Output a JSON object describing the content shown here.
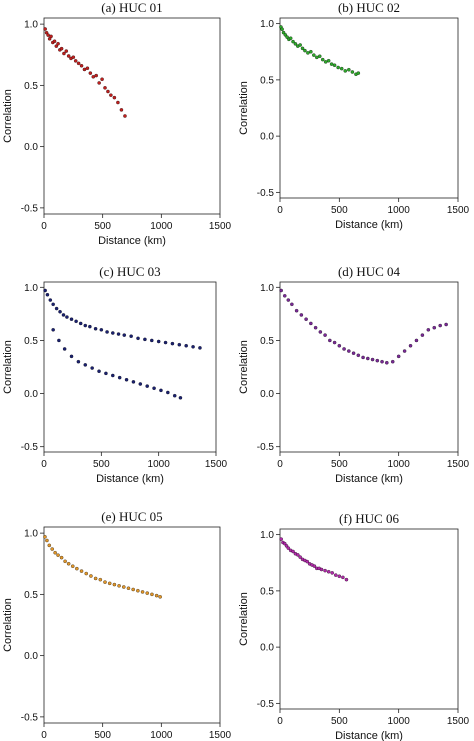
{
  "chart_data": [
    {
      "type": "scatter",
      "title": "(a) HUC 01",
      "xlabel": "Distance (km)",
      "ylabel": "Correlation",
      "xlim": [
        0,
        1500
      ],
      "ylim": [
        -0.55,
        1.05
      ],
      "xticks": [
        0,
        500,
        1000,
        1500
      ],
      "yticks": [
        -0.5,
        0.0,
        0.5,
        1.0
      ],
      "color": "#c0201f",
      "series": [
        {
          "x": [
            10,
            22,
            35,
            48,
            60,
            75,
            90,
            105,
            120,
            135,
            150,
            170,
            190,
            210,
            230,
            250,
            270,
            295,
            320,
            345,
            370,
            395,
            420,
            445,
            470,
            495,
            520,
            545,
            570,
            600,
            630,
            660,
            690
          ],
          "y": [
            0.96,
            0.93,
            0.91,
            0.88,
            0.9,
            0.85,
            0.86,
            0.82,
            0.84,
            0.79,
            0.8,
            0.76,
            0.78,
            0.74,
            0.72,
            0.73,
            0.7,
            0.68,
            0.66,
            0.63,
            0.64,
            0.6,
            0.57,
            0.58,
            0.52,
            0.55,
            0.48,
            0.45,
            0.42,
            0.4,
            0.36,
            0.3,
            0.25
          ]
        }
      ]
    },
    {
      "type": "scatter",
      "title": "(b) HUC 02",
      "xlabel": "Distance (km)",
      "ylabel": "Correlation",
      "xlim": [
        0,
        1500
      ],
      "ylim": [
        -0.55,
        1.05
      ],
      "xticks": [
        0,
        500,
        1000,
        1500
      ],
      "yticks": [
        -0.5,
        0.0,
        0.5,
        1.0
      ],
      "color": "#2ea82b",
      "series": [
        {
          "x": [
            8,
            18,
            30,
            45,
            60,
            75,
            90,
            110,
            130,
            150,
            170,
            190,
            210,
            235,
            260,
            285,
            310,
            335,
            360,
            385,
            410,
            435,
            460,
            490,
            520,
            550,
            580,
            610,
            640,
            660
          ],
          "y": [
            0.97,
            0.95,
            0.92,
            0.9,
            0.88,
            0.86,
            0.87,
            0.84,
            0.82,
            0.8,
            0.81,
            0.78,
            0.76,
            0.74,
            0.75,
            0.72,
            0.7,
            0.71,
            0.68,
            0.66,
            0.67,
            0.64,
            0.63,
            0.61,
            0.6,
            0.58,
            0.59,
            0.57,
            0.55,
            0.56
          ]
        }
      ]
    },
    {
      "type": "scatter",
      "title": "(c) HUC 03",
      "xlabel": "Distance (km)",
      "ylabel": "Correlation",
      "xlim": [
        0,
        1500
      ],
      "ylim": [
        -0.55,
        1.05
      ],
      "xticks": [
        0,
        500,
        1000,
        1500
      ],
      "yticks": [
        -0.5,
        0.0,
        0.5,
        1.0
      ],
      "color": "#1b2170",
      "series": [
        {
          "x": [
            10,
            30,
            55,
            80,
            110,
            140,
            170,
            200,
            240,
            280,
            320,
            360,
            400,
            450,
            500,
            550,
            600,
            650,
            700,
            760,
            820,
            880,
            940,
            1000,
            1060,
            1120,
            1180,
            1240,
            1300,
            1360,
            80,
            130,
            180,
            240,
            300,
            360,
            420,
            480,
            540,
            600,
            660,
            720,
            780,
            840,
            900,
            960,
            1020,
            1080,
            1140,
            1190
          ],
          "y": [
            0.97,
            0.93,
            0.88,
            0.84,
            0.8,
            0.77,
            0.74,
            0.72,
            0.7,
            0.68,
            0.66,
            0.64,
            0.63,
            0.61,
            0.6,
            0.58,
            0.57,
            0.56,
            0.55,
            0.54,
            0.52,
            0.51,
            0.5,
            0.49,
            0.48,
            0.47,
            0.46,
            0.45,
            0.44,
            0.43,
            0.6,
            0.5,
            0.42,
            0.35,
            0.3,
            0.27,
            0.24,
            0.21,
            0.19,
            0.17,
            0.15,
            0.13,
            0.11,
            0.09,
            0.07,
            0.05,
            0.03,
            0.01,
            -0.02,
            -0.04
          ]
        }
      ]
    },
    {
      "type": "scatter",
      "title": "(d) HUC 04",
      "xlabel": "Distance (km)",
      "ylabel": "Correlation",
      "xlim": [
        0,
        1500
      ],
      "ylim": [
        -0.55,
        1.05
      ],
      "xticks": [
        0,
        500,
        1000,
        1500
      ],
      "yticks": [
        -0.5,
        0.0,
        0.5,
        1.0
      ],
      "color": "#7a2a96",
      "series": [
        {
          "x": [
            10,
            40,
            70,
            100,
            140,
            180,
            220,
            260,
            300,
            340,
            380,
            420,
            460,
            500,
            540,
            580,
            620,
            660,
            700,
            740,
            780,
            820,
            860,
            900,
            950,
            1000,
            1050,
            1100,
            1150,
            1200,
            1250,
            1300,
            1350,
            1400
          ],
          "y": [
            0.97,
            0.92,
            0.88,
            0.84,
            0.78,
            0.74,
            0.7,
            0.66,
            0.62,
            0.58,
            0.55,
            0.5,
            0.48,
            0.45,
            0.42,
            0.4,
            0.38,
            0.36,
            0.34,
            0.33,
            0.32,
            0.31,
            0.3,
            0.29,
            0.3,
            0.35,
            0.4,
            0.45,
            0.5,
            0.55,
            0.6,
            0.62,
            0.64,
            0.65
          ]
        }
      ]
    },
    {
      "type": "scatter",
      "title": "(e) HUC 05",
      "xlabel": "Distance (km)",
      "ylabel": "Correlation",
      "xlim": [
        0,
        1500
      ],
      "ylim": [
        -0.55,
        1.05
      ],
      "xticks": [
        0,
        500,
        1000,
        1500
      ],
      "yticks": [
        -0.5,
        0.0,
        0.5,
        1.0
      ],
      "color": "#e0962a",
      "series": [
        {
          "x": [
            8,
            25,
            45,
            70,
            95,
            120,
            150,
            180,
            210,
            245,
            280,
            320,
            360,
            400,
            440,
            480,
            520,
            560,
            600,
            640,
            680,
            720,
            760,
            800,
            840,
            880,
            920,
            960,
            990
          ],
          "y": [
            0.97,
            0.94,
            0.9,
            0.87,
            0.84,
            0.82,
            0.8,
            0.77,
            0.75,
            0.73,
            0.71,
            0.69,
            0.67,
            0.65,
            0.63,
            0.62,
            0.6,
            0.59,
            0.58,
            0.57,
            0.56,
            0.55,
            0.54,
            0.53,
            0.52,
            0.51,
            0.5,
            0.49,
            0.48
          ]
        }
      ]
    },
    {
      "type": "scatter",
      "title": "(f) HUC 06",
      "xlabel": "Distance (km)",
      "ylabel": "Correlation",
      "xlim": [
        0,
        1500
      ],
      "ylim": [
        -0.55,
        1.05
      ],
      "xticks": [
        0,
        500,
        1000,
        1500
      ],
      "yticks": [
        -0.5,
        0.0,
        0.5,
        1.0
      ],
      "color": "#b02aa8",
      "series": [
        {
          "x": [
            10,
            25,
            40,
            55,
            70,
            90,
            110,
            130,
            150,
            170,
            190,
            210,
            230,
            250,
            270,
            290,
            310,
            330,
            350,
            380,
            410,
            440,
            470,
            500,
            530,
            560
          ],
          "y": [
            0.96,
            0.93,
            0.92,
            0.9,
            0.88,
            0.86,
            0.85,
            0.83,
            0.82,
            0.8,
            0.78,
            0.77,
            0.76,
            0.74,
            0.73,
            0.72,
            0.7,
            0.7,
            0.69,
            0.68,
            0.67,
            0.66,
            0.64,
            0.63,
            0.62,
            0.6
          ]
        }
      ]
    }
  ]
}
